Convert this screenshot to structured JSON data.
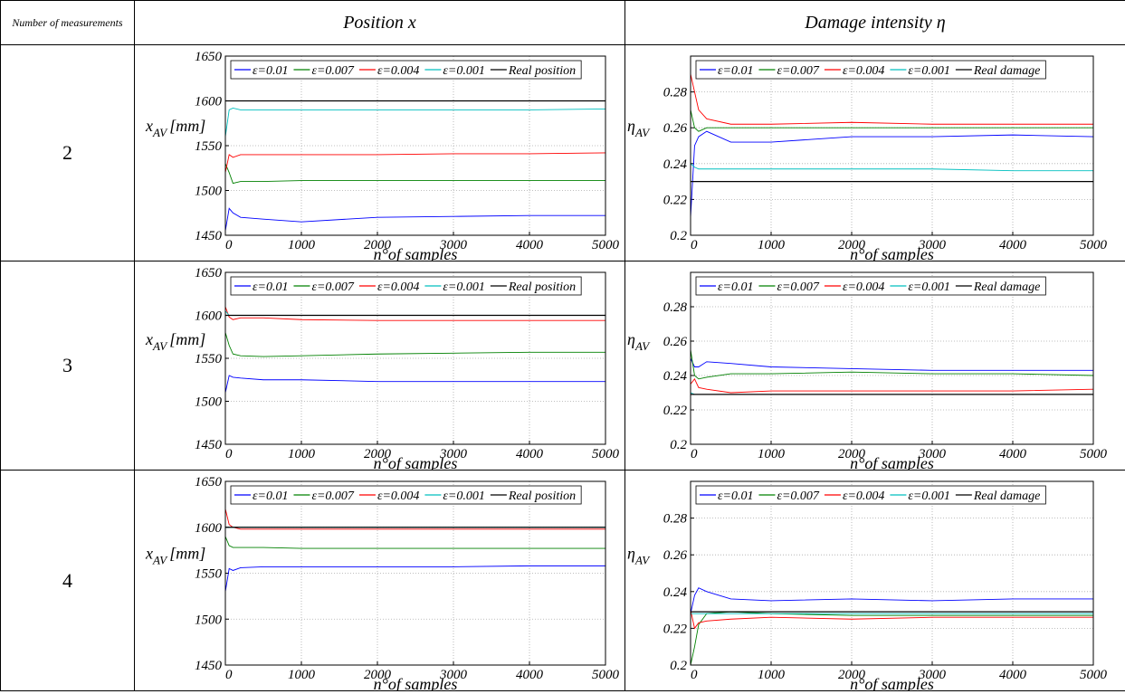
{
  "table": {
    "header": [
      "Number of measurements",
      "Position x",
      "Damage intensity η"
    ],
    "rows": [
      "2",
      "3",
      "4"
    ]
  },
  "chart_data": [
    {
      "type": "line",
      "y_label": {
        "main": "x",
        "sub": "AV",
        "unit": "[mm]"
      },
      "x_label": "n°of samples",
      "x": [
        0,
        50,
        100,
        200,
        500,
        1000,
        2000,
        3000,
        4000,
        5000
      ],
      "xlim": [
        0,
        5000
      ],
      "xticks": [
        0,
        1000,
        2000,
        3000,
        4000,
        5000
      ],
      "ylim": [
        1450,
        1650
      ],
      "yticks": [
        1450,
        1500,
        1550,
        1600,
        1650
      ],
      "grid": true,
      "series": [
        {
          "name": "ε=0.01",
          "color": "#0000ff",
          "values": [
            1455,
            1480,
            1475,
            1470,
            1468,
            1465,
            1470,
            1471,
            1472,
            1472
          ]
        },
        {
          "name": "ε=0.007",
          "color": "#008000",
          "values": [
            1530,
            1520,
            1508,
            1510,
            1510,
            1511,
            1511,
            1511,
            1511,
            1511
          ]
        },
        {
          "name": "ε=0.004",
          "color": "#ff0000",
          "values": [
            1520,
            1540,
            1537,
            1540,
            1540,
            1540,
            1540,
            1541,
            1541,
            1542
          ]
        },
        {
          "name": "ε=0.001",
          "color": "#00bfbf",
          "values": [
            1560,
            1590,
            1592,
            1590,
            1590,
            1590,
            1590,
            1590,
            1590,
            1591
          ]
        },
        {
          "name": "Real position",
          "color": "#000000",
          "values": [
            1600,
            1600,
            1600,
            1600,
            1600,
            1600,
            1600,
            1600,
            1600,
            1600
          ]
        }
      ]
    },
    {
      "type": "line",
      "y_label": {
        "main": "η",
        "sub": "AV"
      },
      "x_label": "n°of samples",
      "x": [
        0,
        50,
        100,
        200,
        500,
        1000,
        2000,
        3000,
        4000,
        5000
      ],
      "xlim": [
        0,
        5000
      ],
      "xticks": [
        0,
        1000,
        2000,
        3000,
        4000,
        5000
      ],
      "ylim": [
        0.2,
        0.3
      ],
      "yticks": [
        0.2,
        0.22,
        0.24,
        0.26,
        0.28
      ],
      "grid": true,
      "series": [
        {
          "name": "ε=0.01",
          "color": "#0000ff",
          "values": [
            0.21,
            0.25,
            0.255,
            0.258,
            0.252,
            0.252,
            0.255,
            0.255,
            0.256,
            0.255
          ]
        },
        {
          "name": "ε=0.007",
          "color": "#008000",
          "values": [
            0.27,
            0.26,
            0.258,
            0.26,
            0.26,
            0.26,
            0.26,
            0.26,
            0.26,
            0.26
          ]
        },
        {
          "name": "ε=0.004",
          "color": "#ff0000",
          "values": [
            0.29,
            0.28,
            0.27,
            0.265,
            0.262,
            0.262,
            0.263,
            0.262,
            0.262,
            0.262
          ]
        },
        {
          "name": "ε=0.001",
          "color": "#00bfbf",
          "values": [
            0.24,
            0.238,
            0.237,
            0.237,
            0.237,
            0.237,
            0.237,
            0.237,
            0.236,
            0.236
          ]
        },
        {
          "name": "Real damage",
          "color": "#000000",
          "values": [
            0.23,
            0.23,
            0.23,
            0.23,
            0.23,
            0.23,
            0.23,
            0.23,
            0.23,
            0.23
          ]
        }
      ]
    },
    {
      "type": "line",
      "y_label": {
        "main": "x",
        "sub": "AV",
        "unit": "[mm]"
      },
      "x_label": "n°of samples",
      "x": [
        0,
        50,
        100,
        200,
        500,
        1000,
        2000,
        3000,
        4000,
        5000
      ],
      "xlim": [
        0,
        5000
      ],
      "xticks": [
        0,
        1000,
        2000,
        3000,
        4000,
        5000
      ],
      "ylim": [
        1450,
        1650
      ],
      "yticks": [
        1450,
        1500,
        1550,
        1600,
        1650
      ],
      "grid": true,
      "series": [
        {
          "name": "ε=0.01",
          "color": "#0000ff",
          "values": [
            1510,
            1530,
            1528,
            1527,
            1525,
            1525,
            1523,
            1523,
            1523,
            1523
          ]
        },
        {
          "name": "ε=0.007",
          "color": "#008000",
          "values": [
            1580,
            1565,
            1555,
            1553,
            1552,
            1553,
            1555,
            1556,
            1557,
            1557
          ]
        },
        {
          "name": "ε=0.004",
          "color": "#ff0000",
          "values": [
            1610,
            1598,
            1595,
            1597,
            1597,
            1595,
            1594,
            1594,
            1594,
            1594
          ]
        },
        {
          "name": "ε=0.001",
          "color": "#00bfbf",
          "values": [
            1605,
            1600,
            1600,
            1600,
            1600,
            1600,
            1600,
            1600,
            1600,
            1600
          ]
        },
        {
          "name": "Real position",
          "color": "#000000",
          "values": [
            1600,
            1600,
            1600,
            1600,
            1600,
            1600,
            1600,
            1600,
            1600,
            1600
          ]
        }
      ]
    },
    {
      "type": "line",
      "y_label": {
        "main": "η",
        "sub": "AV"
      },
      "x_label": "n°of samples",
      "x": [
        0,
        50,
        100,
        200,
        500,
        1000,
        2000,
        3000,
        4000,
        5000
      ],
      "xlim": [
        0,
        5000
      ],
      "xticks": [
        0,
        1000,
        2000,
        3000,
        4000,
        5000
      ],
      "ylim": [
        0.2,
        0.3
      ],
      "yticks": [
        0.2,
        0.22,
        0.24,
        0.26,
        0.28
      ],
      "grid": true,
      "series": [
        {
          "name": "ε=0.01",
          "color": "#0000ff",
          "values": [
            0.25,
            0.245,
            0.245,
            0.248,
            0.247,
            0.245,
            0.244,
            0.243,
            0.243,
            0.243
          ]
        },
        {
          "name": "ε=0.007",
          "color": "#008000",
          "values": [
            0.255,
            0.24,
            0.238,
            0.239,
            0.241,
            0.241,
            0.242,
            0.241,
            0.241,
            0.24
          ]
        },
        {
          "name": "ε=0.004",
          "color": "#ff0000",
          "values": [
            0.235,
            0.238,
            0.233,
            0.232,
            0.23,
            0.231,
            0.231,
            0.231,
            0.231,
            0.232
          ]
        },
        {
          "name": "ε=0.001",
          "color": "#00bfbf",
          "values": [
            0.23,
            0.229,
            0.229,
            0.229,
            0.229,
            0.229,
            0.229,
            0.229,
            0.229,
            0.229
          ]
        },
        {
          "name": "Real damage",
          "color": "#000000",
          "values": [
            0.229,
            0.229,
            0.229,
            0.229,
            0.229,
            0.229,
            0.229,
            0.229,
            0.229,
            0.229
          ]
        }
      ]
    },
    {
      "type": "line",
      "y_label": {
        "main": "x",
        "sub": "AV",
        "unit": "[mm]"
      },
      "x_label": "n°of samples",
      "x": [
        0,
        50,
        100,
        200,
        500,
        1000,
        2000,
        3000,
        4000,
        5000
      ],
      "xlim": [
        0,
        5000
      ],
      "xticks": [
        0,
        1000,
        2000,
        3000,
        4000,
        5000
      ],
      "ylim": [
        1450,
        1650
      ],
      "yticks": [
        1450,
        1500,
        1550,
        1600,
        1650
      ],
      "grid": true,
      "series": [
        {
          "name": "ε=0.01",
          "color": "#0000ff",
          "values": [
            1530,
            1555,
            1553,
            1556,
            1557,
            1557,
            1557,
            1557,
            1558,
            1558
          ]
        },
        {
          "name": "ε=0.007",
          "color": "#008000",
          "values": [
            1590,
            1580,
            1578,
            1578,
            1578,
            1577,
            1577,
            1577,
            1577,
            1577
          ]
        },
        {
          "name": "ε=0.004",
          "color": "#ff0000",
          "values": [
            1620,
            1603,
            1600,
            1598,
            1598,
            1598,
            1598,
            1598,
            1598,
            1598
          ]
        },
        {
          "name": "ε=0.001",
          "color": "#00bfbf",
          "values": [
            1600,
            1600,
            1600,
            1600,
            1600,
            1600,
            1600,
            1600,
            1600,
            1600
          ]
        },
        {
          "name": "Real position",
          "color": "#000000",
          "values": [
            1600,
            1600,
            1600,
            1600,
            1600,
            1600,
            1600,
            1600,
            1600,
            1600
          ]
        }
      ]
    },
    {
      "type": "line",
      "y_label": {
        "main": "η",
        "sub": "AV"
      },
      "x_label": "n°of samples",
      "x": [
        0,
        50,
        100,
        200,
        500,
        1000,
        2000,
        3000,
        4000,
        5000
      ],
      "xlim": [
        0,
        5000
      ],
      "xticks": [
        0,
        1000,
        2000,
        3000,
        4000,
        5000
      ],
      "ylim": [
        0.2,
        0.3
      ],
      "yticks": [
        0.2,
        0.22,
        0.24,
        0.26,
        0.28
      ],
      "grid": true,
      "series": [
        {
          "name": "ε=0.01",
          "color": "#0000ff",
          "values": [
            0.228,
            0.238,
            0.242,
            0.24,
            0.236,
            0.235,
            0.236,
            0.235,
            0.236,
            0.236
          ]
        },
        {
          "name": "ε=0.007",
          "color": "#008000",
          "values": [
            0.2,
            0.21,
            0.222,
            0.228,
            0.229,
            0.228,
            0.227,
            0.227,
            0.227,
            0.227
          ]
        },
        {
          "name": "ε=0.004",
          "color": "#ff0000",
          "values": [
            0.23,
            0.22,
            0.223,
            0.224,
            0.225,
            0.226,
            0.225,
            0.226,
            0.226,
            0.226
          ]
        },
        {
          "name": "ε=0.001",
          "color": "#00bfbf",
          "values": [
            0.228,
            0.228,
            0.228,
            0.228,
            0.228,
            0.228,
            0.228,
            0.228,
            0.228,
            0.228
          ]
        },
        {
          "name": "Real damage",
          "color": "#000000",
          "values": [
            0.229,
            0.229,
            0.229,
            0.229,
            0.229,
            0.229,
            0.229,
            0.229,
            0.229,
            0.229
          ]
        }
      ]
    }
  ]
}
